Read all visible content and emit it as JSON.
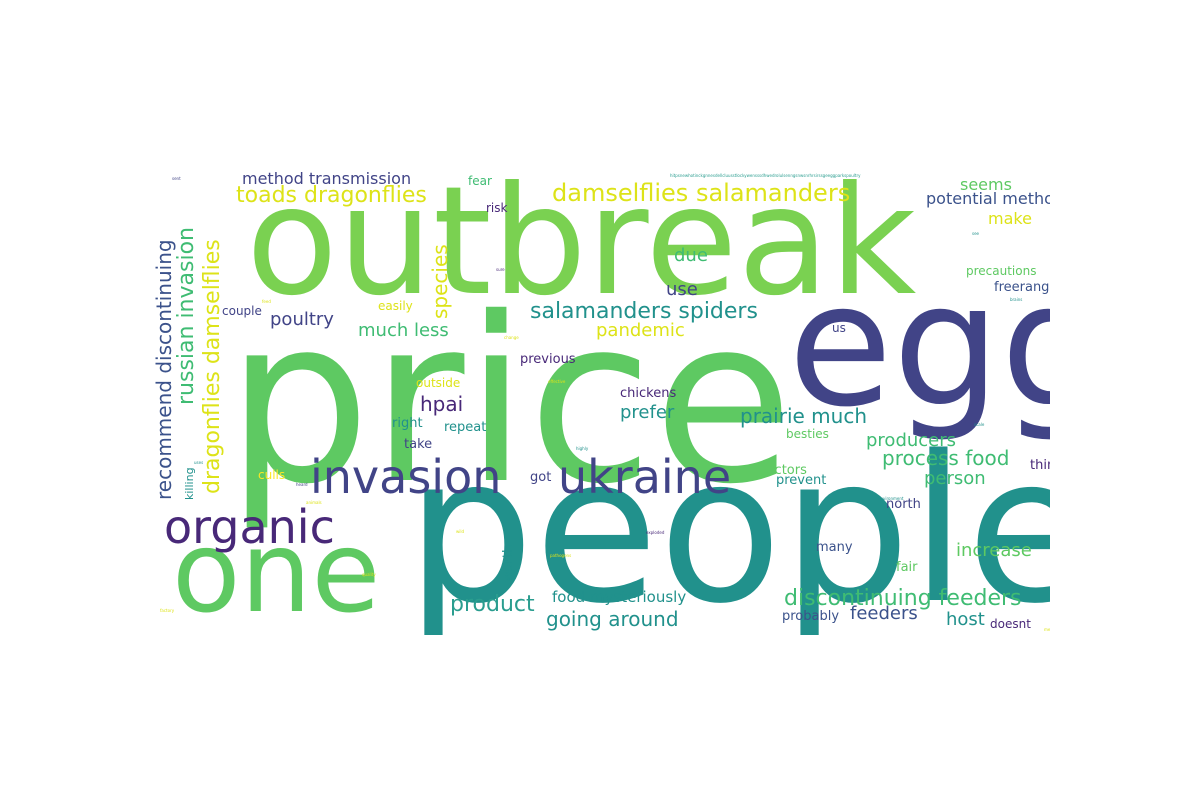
{
  "colors": {
    "lime": "#7ad151",
    "green": "#5ec962",
    "mint": "#3fbc73",
    "teal": "#21918c",
    "cyan": "#2a9d8f",
    "blue": "#3b528b",
    "navy": "#414487",
    "purple": "#482878",
    "yellow": "#dde318",
    "gold": "#fde725"
  },
  "words": [
    {
      "text": "outbreak",
      "color": "lime"
    },
    {
      "text": "price",
      "color": "green"
    },
    {
      "text": "egg",
      "color": "navy"
    },
    {
      "text": "people",
      "color": "teal"
    },
    {
      "text": "one",
      "color": "green"
    },
    {
      "text": "invasion",
      "color": "navy"
    },
    {
      "text": "ukraine",
      "color": "navy"
    },
    {
      "text": "organic",
      "color": "purple"
    },
    {
      "text": "damselflies salamanders",
      "color": "yellow"
    },
    {
      "text": "salamanders spiders",
      "color": "teal"
    },
    {
      "text": "toads dragonflies",
      "color": "yellow"
    },
    {
      "text": "method transmission",
      "color": "navy"
    },
    {
      "text": "russian invasion",
      "color": "mint"
    },
    {
      "text": "dragonflies damselflies",
      "color": "yellow"
    },
    {
      "text": "recommend discontinuing",
      "color": "blue"
    },
    {
      "text": "species",
      "color": "yellow"
    },
    {
      "text": "discontinuing feeders",
      "color": "mint"
    },
    {
      "text": "prairie much",
      "color": "teal"
    },
    {
      "text": "process food",
      "color": "mint"
    },
    {
      "text": "going around",
      "color": "teal"
    },
    {
      "text": "product",
      "color": "cyan"
    },
    {
      "text": "much less",
      "color": "mint"
    },
    {
      "text": "poultry",
      "color": "navy"
    },
    {
      "text": "hpai",
      "color": "purple"
    },
    {
      "text": "prefer",
      "color": "teal"
    },
    {
      "text": "producers",
      "color": "mint"
    },
    {
      "text": "person",
      "color": "mint"
    },
    {
      "text": "increase",
      "color": "green"
    },
    {
      "text": "feeders",
      "color": "blue"
    },
    {
      "text": "host",
      "color": "teal"
    },
    {
      "text": "killed",
      "color": "navy"
    },
    {
      "text": "pandemic",
      "color": "yellow"
    },
    {
      "text": "due",
      "color": "mint"
    },
    {
      "text": "use",
      "color": "navy"
    },
    {
      "text": "seems",
      "color": "green"
    },
    {
      "text": "potential method",
      "color": "blue"
    },
    {
      "text": "make",
      "color": "yellow"
    },
    {
      "text": "food mysteriously",
      "color": "teal"
    },
    {
      "text": "precautions",
      "color": "green"
    },
    {
      "text": "freerange",
      "color": "blue"
    },
    {
      "text": "previous",
      "color": "purple"
    },
    {
      "text": "chickens",
      "color": "purple"
    },
    {
      "text": "outside",
      "color": "yellow"
    },
    {
      "text": "repeat",
      "color": "teal"
    },
    {
      "text": "right",
      "color": "teal"
    },
    {
      "text": "take",
      "color": "navy"
    },
    {
      "text": "besties",
      "color": "green"
    },
    {
      "text": "factors",
      "color": "green"
    },
    {
      "text": "prevent",
      "color": "teal"
    },
    {
      "text": "thing",
      "color": "purple"
    },
    {
      "text": "north",
      "color": "navy"
    },
    {
      "text": "many",
      "color": "blue"
    },
    {
      "text": "fair",
      "color": "green"
    },
    {
      "text": "probably",
      "color": "blue"
    },
    {
      "text": "doesnt",
      "color": "purple"
    },
    {
      "text": "culls",
      "color": "gold"
    },
    {
      "text": "got",
      "color": "navy"
    },
    {
      "text": "worth",
      "color": "teal"
    },
    {
      "text": "easily",
      "color": "yellow"
    },
    {
      "text": "couple",
      "color": "navy"
    },
    {
      "text": "fear",
      "color": "mint"
    },
    {
      "text": "risk",
      "color": "purple"
    },
    {
      "text": "us",
      "color": "navy"
    },
    {
      "text": "killing",
      "color": "teal"
    },
    {
      "text": "sent",
      "color": "navy"
    },
    {
      "text": "hitpsnewhotinckgnnesdellcluusstlockywensssdhwedrolulsenngsnwsnrhrsirssgeeggparkspoultry",
      "color": "cyan"
    },
    {
      "text": "see",
      "color": "teal"
    },
    {
      "text": "brains",
      "color": "teal"
    },
    {
      "text": "feed",
      "color": "yellow"
    },
    {
      "text": "change",
      "color": "yellow"
    },
    {
      "text": "effective",
      "color": "yellow"
    },
    {
      "text": "highly",
      "color": "teal"
    },
    {
      "text": "sure",
      "color": "purple"
    },
    {
      "text": "heard",
      "color": "navy"
    },
    {
      "text": "scale",
      "color": "teal"
    },
    {
      "text": "environment",
      "color": "teal"
    },
    {
      "text": "exploded",
      "color": "purple"
    },
    {
      "text": "pathogens",
      "color": "yellow"
    },
    {
      "text": "factory",
      "color": "yellow"
    },
    {
      "text": "quality",
      "color": "yellow"
    },
    {
      "text": "wild",
      "color": "yellow"
    },
    {
      "text": "uses",
      "color": "teal"
    },
    {
      "text": "mean",
      "color": "yellow"
    },
    {
      "text": "animals",
      "color": "yellow"
    }
  ]
}
